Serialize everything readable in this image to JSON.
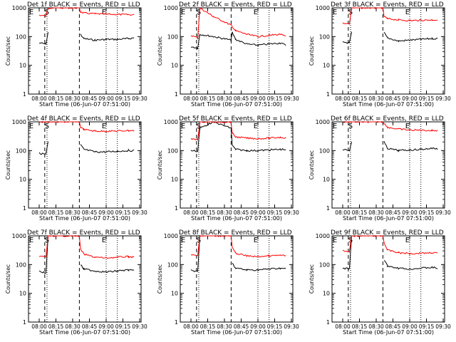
{
  "figure": {
    "start_time_label": "Start Time (06-Jun-07 07:51:00)",
    "ylabel": "Counts/sec",
    "x_ticks": [
      "08:00",
      "08:15",
      "08:30",
      "08:45",
      "09:00",
      "09:15",
      "09:30"
    ],
    "y_ticks": [
      "1",
      "10",
      "100",
      "1000"
    ],
    "colors": {
      "events": "#000000",
      "lld": "#ff0000"
    }
  },
  "chart_data": [
    {
      "type": "line",
      "title": "Det 1f BLACK = Events, RED = LLD",
      "xlabel": "Start Time (06-Jun-07 07:51:00)",
      "ylabel": "Counts/sec",
      "x": [
        "08:00",
        "08:06",
        "08:08",
        "08:20",
        "08:36",
        "08:37",
        "08:40",
        "08:50",
        "09:00",
        "09:10",
        "09:20",
        "09:25"
      ],
      "ylim": [
        1,
        1000
      ],
      "yscale": "log",
      "markers": [
        {
          "label": "E",
          "time": "07:53"
        },
        {
          "label": "S",
          "time": "08:07"
        },
        {
          "label": "E",
          "time": "08:58"
        }
      ],
      "series": [
        {
          "name": "Events",
          "color": "#000000",
          "values": [
            60,
            55,
            140,
            null,
            null,
            120,
            85,
            75,
            80,
            80,
            85,
            90
          ]
        },
        {
          "name": "LLD",
          "color": "#ff0000",
          "values": [
            560,
            520,
            1000,
            1000,
            1000,
            720,
            660,
            620,
            600,
            590,
            580,
            570
          ]
        }
      ]
    },
    {
      "type": "line",
      "title": "Det 2f BLACK = Events, RED = LLD",
      "xlabel": "Start Time (06-Jun-07 07:51:00)",
      "ylabel": "Counts/sec",
      "x": [
        "08:00",
        "08:06",
        "08:08",
        "08:20",
        "08:36",
        "08:37",
        "08:40",
        "08:50",
        "09:00",
        "09:10",
        "09:20",
        "09:25"
      ],
      "ylim": [
        1,
        1000
      ],
      "yscale": "log",
      "markers": [
        {
          "label": "E",
          "time": "07:53"
        },
        {
          "label": "S",
          "time": "08:07"
        },
        {
          "label": "E",
          "time": "08:58"
        }
      ],
      "series": [
        {
          "name": "Events",
          "color": "#000000",
          "values": [
            45,
            40,
            120,
            100,
            75,
            140,
            80,
            55,
            50,
            55,
            60,
            50
          ]
        },
        {
          "name": "LLD",
          "color": "#ff0000",
          "values": [
            110,
            90,
            1000,
            500,
            250,
            220,
            160,
            120,
            100,
            110,
            120,
            100
          ]
        }
      ]
    },
    {
      "type": "line",
      "title": "Det 3f BLACK = Events, RED = LLD",
      "xlabel": "Start Time (06-Jun-07 07:51:00)",
      "ylabel": "Counts/sec",
      "x": [
        "08:00",
        "08:06",
        "08:08",
        "08:20",
        "08:36",
        "08:37",
        "08:40",
        "08:50",
        "09:00",
        "09:10",
        "09:20",
        "09:25"
      ],
      "ylim": [
        1,
        1000
      ],
      "yscale": "log",
      "markers": [
        {
          "label": "E",
          "time": "07:53"
        },
        {
          "label": "S",
          "time": "08:07"
        },
        {
          "label": "E",
          "time": "08:58"
        }
      ],
      "series": [
        {
          "name": "Events",
          "color": "#000000",
          "values": [
            65,
            60,
            140,
            null,
            null,
            140,
            90,
            70,
            75,
            80,
            85,
            85
          ]
        },
        {
          "name": "LLD",
          "color": "#ff0000",
          "values": [
            300,
            280,
            1000,
            1000,
            1000,
            500,
            420,
            380,
            360,
            370,
            380,
            380
          ]
        }
      ]
    },
    {
      "type": "line",
      "title": "Det 4f BLACK = Events, RED = LLD",
      "xlabel": "Start Time (06-Jun-07 07:51:00)",
      "ylabel": "Counts/sec",
      "x": [
        "08:00",
        "08:06",
        "08:08",
        "08:20",
        "08:36",
        "08:37",
        "08:40",
        "08:50",
        "09:00",
        "09:10",
        "09:20",
        "09:25"
      ],
      "ylim": [
        1,
        1000
      ],
      "yscale": "log",
      "markers": [
        {
          "label": "E",
          "time": "07:53"
        },
        {
          "label": "S",
          "time": "08:07"
        },
        {
          "label": "E",
          "time": "08:58"
        }
      ],
      "series": [
        {
          "name": "Events",
          "color": "#000000",
          "values": [
            80,
            75,
            200,
            null,
            null,
            160,
            110,
            90,
            90,
            95,
            100,
            100
          ]
        },
        {
          "name": "LLD",
          "color": "#ff0000",
          "values": [
            1000,
            1000,
            1000,
            1000,
            1000,
            650,
            540,
            480,
            470,
            480,
            500,
            490
          ]
        }
      ]
    },
    {
      "type": "line",
      "title": "Det 5f BLACK = Events, RED = LLD",
      "xlabel": "Start Time (06-Jun-07 07:51:00)",
      "ylabel": "Counts/sec",
      "x": [
        "08:00",
        "08:06",
        "08:08",
        "08:20",
        "08:36",
        "08:37",
        "08:40",
        "08:50",
        "09:00",
        "09:10",
        "09:20",
        "09:25"
      ],
      "ylim": [
        1,
        1000
      ],
      "yscale": "log",
      "markers": [
        {
          "label": "E",
          "time": "07:53"
        },
        {
          "label": "S",
          "time": "08:07"
        },
        {
          "label": "E",
          "time": "08:58"
        }
      ],
      "series": [
        {
          "name": "Events",
          "color": "#000000",
          "values": [
            100,
            95,
            600,
            1000,
            600,
            150,
            110,
            100,
            100,
            105,
            110,
            110
          ]
        },
        {
          "name": "LLD",
          "color": "#ff0000",
          "values": [
            250,
            240,
            1000,
            1000,
            1000,
            400,
            300,
            270,
            260,
            270,
            290,
            280
          ]
        }
      ]
    },
    {
      "type": "line",
      "title": "Det 6f BLACK = Events, RED = LLD",
      "xlabel": "Start Time (06-Jun-07 07:51:00)",
      "ylabel": "Counts/sec",
      "x": [
        "08:00",
        "08:06",
        "08:08",
        "08:20",
        "08:36",
        "08:37",
        "08:40",
        "08:50",
        "09:00",
        "09:10",
        "09:20",
        "09:25"
      ],
      "ylim": [
        1,
        1000
      ],
      "yscale": "log",
      "markers": [
        {
          "label": "E",
          "time": "07:53"
        },
        {
          "label": "S",
          "time": "08:07"
        },
        {
          "label": "E",
          "time": "08:58"
        }
      ],
      "series": [
        {
          "name": "Events",
          "color": "#000000",
          "values": [
            110,
            100,
            200,
            null,
            null,
            200,
            120,
            100,
            105,
            110,
            120,
            115
          ]
        },
        {
          "name": "LLD",
          "color": "#ff0000",
          "values": [
            1000,
            1000,
            1000,
            1000,
            1000,
            900,
            650,
            560,
            520,
            510,
            500,
            500
          ]
        }
      ]
    },
    {
      "type": "line",
      "title": "Det 7f BLACK = Events, RED = LLD",
      "xlabel": "Start Time (06-Jun-07 07:51:00)",
      "ylabel": "Counts/sec",
      "x": [
        "08:00",
        "08:06",
        "08:08",
        "08:20",
        "08:36",
        "08:37",
        "08:40",
        "08:50",
        "09:00",
        "09:10",
        "09:20",
        "09:25"
      ],
      "ylim": [
        1,
        1000
      ],
      "yscale": "log",
      "markers": [
        {
          "label": "E",
          "time": "07:53"
        },
        {
          "label": "S",
          "time": "08:07"
        },
        {
          "label": "E",
          "time": "08:58"
        }
      ],
      "series": [
        {
          "name": "Events",
          "color": "#000000",
          "values": [
            60,
            50,
            1000,
            null,
            null,
            100,
            70,
            60,
            55,
            60,
            65,
            60
          ]
        },
        {
          "name": "LLD",
          "color": "#ff0000",
          "values": [
            200,
            180,
            1000,
            1000,
            1000,
            350,
            230,
            180,
            170,
            180,
            190,
            180
          ]
        }
      ]
    },
    {
      "type": "line",
      "title": "Det 8f BLACK = Events, RED = LLD",
      "xlabel": "Start Time (06-Jun-07 07:51:00)",
      "ylabel": "Counts/sec",
      "x": [
        "08:00",
        "08:06",
        "08:08",
        "08:20",
        "08:36",
        "08:37",
        "08:40",
        "08:50",
        "09:00",
        "09:10",
        "09:20",
        "09:25"
      ],
      "ylim": [
        1,
        1000
      ],
      "yscale": "log",
      "markers": [
        {
          "label": "E",
          "time": "07:53"
        },
        {
          "label": "S",
          "time": "08:07"
        },
        {
          "label": "E",
          "time": "08:58"
        }
      ],
      "series": [
        {
          "name": "Events",
          "color": "#000000",
          "values": [
            65,
            55,
            1000,
            null,
            null,
            110,
            75,
            65,
            65,
            70,
            75,
            70
          ]
        },
        {
          "name": "LLD",
          "color": "#ff0000",
          "values": [
            220,
            200,
            1000,
            1000,
            1000,
            380,
            250,
            200,
            190,
            200,
            210,
            200
          ]
        }
      ]
    },
    {
      "type": "line",
      "title": "Det 9f BLACK = Events, RED = LLD",
      "xlabel": "Start Time (06-Jun-07 07:51:00)",
      "ylabel": "Counts/sec",
      "x": [
        "08:00",
        "08:06",
        "08:08",
        "08:20",
        "08:36",
        "08:37",
        "08:40",
        "08:50",
        "09:00",
        "09:10",
        "09:20",
        "09:25"
      ],
      "ylim": [
        1,
        1000
      ],
      "yscale": "log",
      "markers": [
        {
          "label": "E",
          "time": "07:53"
        },
        {
          "label": "S",
          "time": "08:07"
        },
        {
          "label": "E",
          "time": "08:58"
        }
      ],
      "series": [
        {
          "name": "Events",
          "color": "#000000",
          "values": [
            75,
            70,
            1000,
            null,
            null,
            150,
            90,
            75,
            70,
            75,
            80,
            75
          ]
        },
        {
          "name": "LLD",
          "color": "#ff0000",
          "values": [
            300,
            280,
            1000,
            1000,
            1000,
            600,
            320,
            260,
            240,
            250,
            260,
            250
          ]
        }
      ]
    }
  ]
}
